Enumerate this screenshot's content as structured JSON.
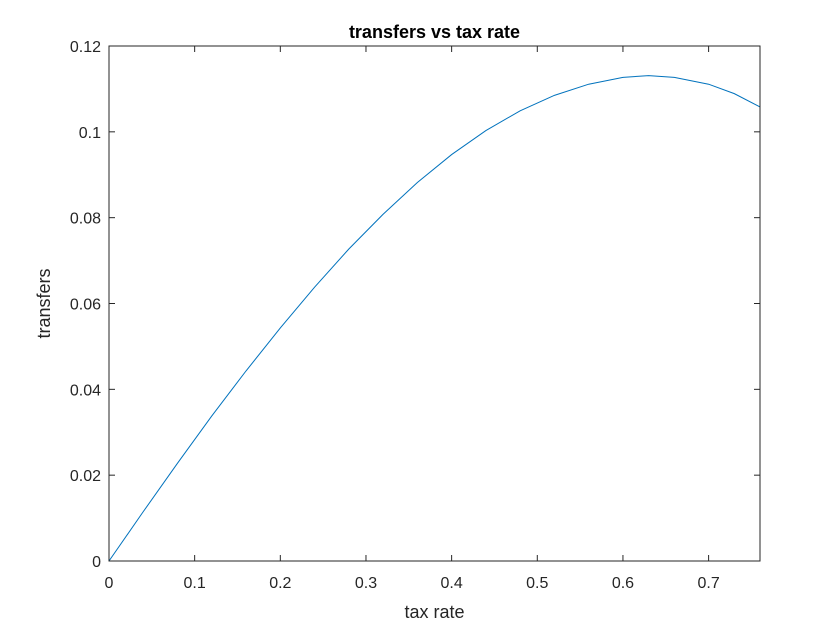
{
  "chart_data": {
    "type": "line",
    "title": "transfers vs tax rate",
    "xlabel": "tax rate",
    "ylabel": "transfers",
    "xlim": [
      0,
      0.76
    ],
    "ylim": [
      0,
      0.12
    ],
    "xticks": [
      0,
      0.1,
      0.2,
      0.3,
      0.4,
      0.5,
      0.6,
      0.7
    ],
    "xtick_labels": [
      "0",
      "0.1",
      "0.2",
      "0.3",
      "0.4",
      "0.5",
      "0.6",
      "0.7"
    ],
    "yticks": [
      0,
      0.02,
      0.04,
      0.06,
      0.08,
      0.1,
      0.12
    ],
    "ytick_labels": [
      "0",
      "0.02",
      "0.04",
      "0.06",
      "0.08",
      "0.1",
      "0.12"
    ],
    "grid": false,
    "box": true,
    "series": [
      {
        "color": "#0072BD",
        "x": [
          0,
          0.04,
          0.08,
          0.12,
          0.16,
          0.2,
          0.24,
          0.28,
          0.32,
          0.36,
          0.4,
          0.44,
          0.48,
          0.52,
          0.56,
          0.6,
          0.63,
          0.66,
          0.7,
          0.73,
          0.76
        ],
        "y": [
          0,
          0.0115,
          0.0228,
          0.0338,
          0.0443,
          0.0543,
          0.0638,
          0.0727,
          0.0808,
          0.0882,
          0.0947,
          0.1003,
          0.1049,
          0.1085,
          0.1111,
          0.1127,
          0.1131,
          0.1127,
          0.1111,
          0.1089,
          0.1058
        ]
      },
      {
        "color": "#A2142F",
        "x": [
          0,
          0.76
        ],
        "y": [
          0,
          0
        ]
      }
    ]
  }
}
